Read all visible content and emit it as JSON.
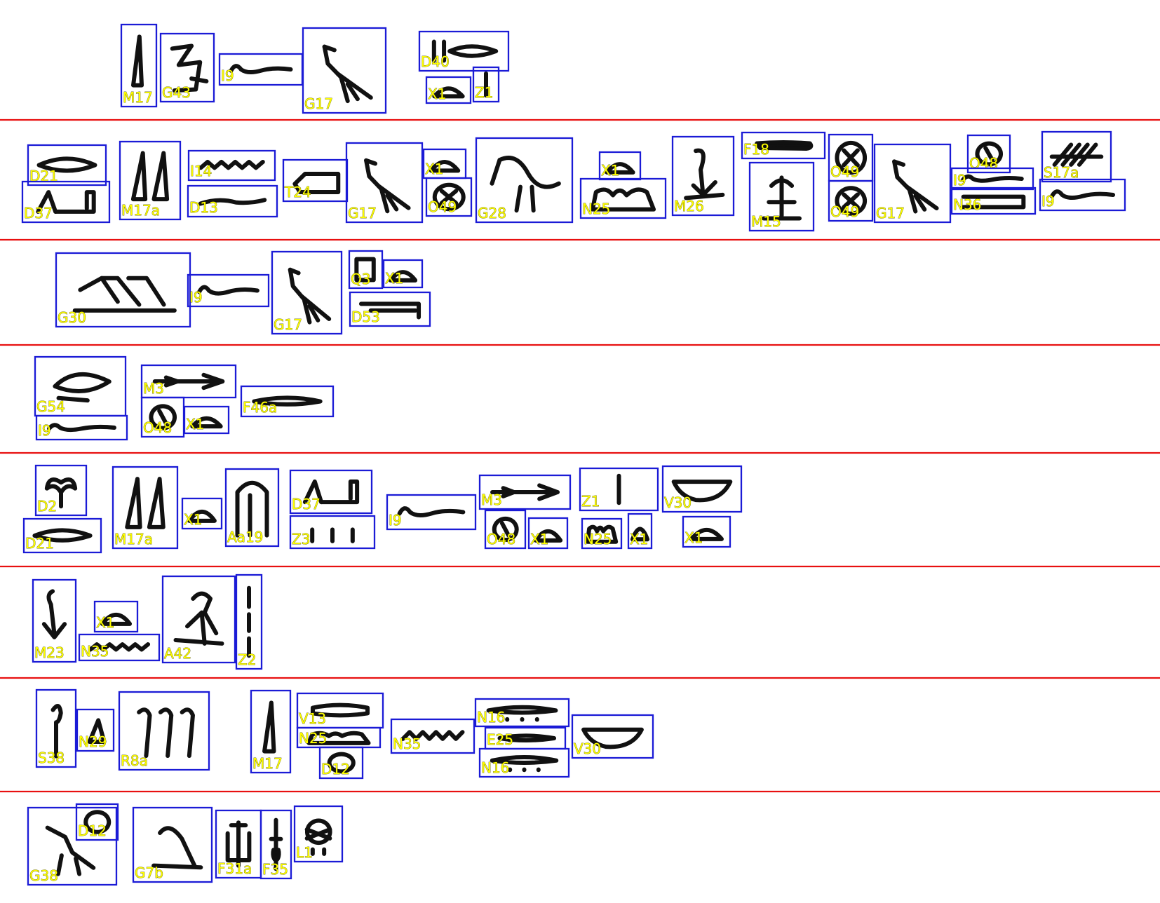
{
  "colors": {
    "separator": "#e81010",
    "box": "#1b1bd6",
    "label": "#ffff00",
    "glyph": "#111111",
    "background": "#ffffff"
  },
  "rows": [
    {
      "glyphs": [
        {
          "code": "M17"
        },
        {
          "code": "G43"
        },
        {
          "code": "I9"
        },
        {
          "code": "G17"
        },
        {
          "code": "D40"
        },
        {
          "code": "X1"
        },
        {
          "code": "Z1"
        }
      ]
    },
    {
      "glyphs": [
        {
          "code": "D21"
        },
        {
          "code": "D37"
        },
        {
          "code": "M17a"
        },
        {
          "code": "I14"
        },
        {
          "code": "D13"
        },
        {
          "code": "T24"
        },
        {
          "code": "G17"
        },
        {
          "code": "X1"
        },
        {
          "code": "O49"
        },
        {
          "code": "G28"
        },
        {
          "code": "X1"
        },
        {
          "code": "N25"
        },
        {
          "code": "M26"
        },
        {
          "code": "F18"
        },
        {
          "code": "M15"
        },
        {
          "code": "O49"
        },
        {
          "code": "O49"
        },
        {
          "code": "G17"
        },
        {
          "code": "O48"
        },
        {
          "code": "I9"
        },
        {
          "code": "N36"
        },
        {
          "code": "S17a"
        },
        {
          "code": "I9"
        }
      ]
    },
    {
      "glyphs": [
        {
          "code": "G30"
        },
        {
          "code": "I9"
        },
        {
          "code": "G17"
        },
        {
          "code": "Q3"
        },
        {
          "code": "X1"
        },
        {
          "code": "D53"
        }
      ]
    },
    {
      "glyphs": [
        {
          "code": "G54"
        },
        {
          "code": "I9"
        },
        {
          "code": "M3"
        },
        {
          "code": "O48"
        },
        {
          "code": "X1"
        },
        {
          "code": "F46a"
        }
      ]
    },
    {
      "glyphs": [
        {
          "code": "D2"
        },
        {
          "code": "D21"
        },
        {
          "code": "M17a"
        },
        {
          "code": "X1"
        },
        {
          "code": "Aa19"
        },
        {
          "code": "D37"
        },
        {
          "code": "Z3"
        },
        {
          "code": "I9"
        },
        {
          "code": "M3"
        },
        {
          "code": "O48"
        },
        {
          "code": "X1"
        },
        {
          "code": "N25"
        },
        {
          "code": "X1"
        },
        {
          "code": "Z1"
        },
        {
          "code": "V30"
        },
        {
          "code": "X1"
        }
      ]
    },
    {
      "glyphs": [
        {
          "code": "M23"
        },
        {
          "code": "X1"
        },
        {
          "code": "N35"
        },
        {
          "code": "A42"
        },
        {
          "code": "Z2"
        }
      ]
    },
    {
      "glyphs": [
        {
          "code": "S38"
        },
        {
          "code": "N29"
        },
        {
          "code": "R8a"
        },
        {
          "code": "M17"
        },
        {
          "code": "V13"
        },
        {
          "code": "N25"
        },
        {
          "code": "D12"
        },
        {
          "code": "N35"
        },
        {
          "code": "N16"
        },
        {
          "code": "E25"
        },
        {
          "code": "N16"
        },
        {
          "code": "V30"
        }
      ]
    },
    {
      "glyphs": [
        {
          "code": "G38"
        },
        {
          "code": "D12"
        },
        {
          "code": "G7b"
        },
        {
          "code": "F31a"
        },
        {
          "code": "F35"
        },
        {
          "code": "L1"
        }
      ]
    }
  ]
}
